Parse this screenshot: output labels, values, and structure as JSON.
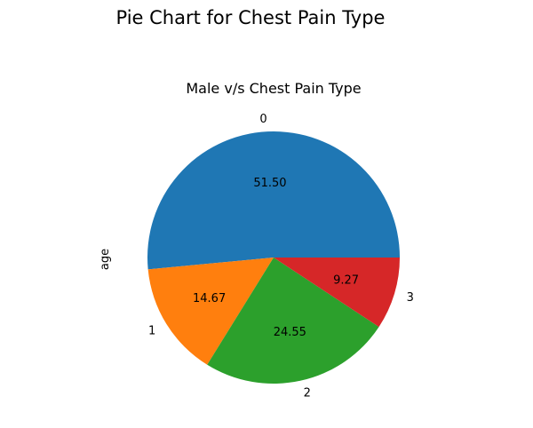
{
  "chart_data": {
    "type": "pie",
    "title": "Pie Chart for Chest Pain Type",
    "subtitle": "Male v/s Chest Pain Type",
    "ylabel": "age",
    "categories": [
      "0",
      "1",
      "2",
      "3"
    ],
    "values": [
      51.5,
      14.67,
      24.55,
      9.27
    ],
    "value_labels": [
      "51.50",
      "14.67",
      "24.55",
      "9.27"
    ],
    "colors": [
      "#1f77b4",
      "#ff7f0e",
      "#2ca02c",
      "#d62728"
    ],
    "start_angle_deg": 0,
    "direction": "counterclockwise"
  }
}
